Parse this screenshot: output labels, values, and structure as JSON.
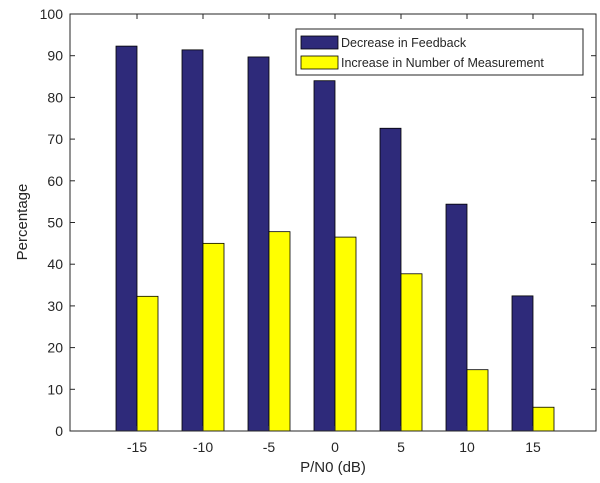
{
  "chart_data": {
    "type": "bar",
    "categories": [
      "-15",
      "-10",
      "-5",
      "0",
      "5",
      "10",
      "15"
    ],
    "series": [
      {
        "name": "Decrease in Feedback",
        "color": "#2e2a7a",
        "values": [
          92.3,
          91.4,
          89.7,
          84.0,
          72.6,
          54.4,
          32.4
        ]
      },
      {
        "name": "Increase in Number of Measurement",
        "color": "#ffff00",
        "values": [
          32.3,
          45.0,
          47.8,
          46.5,
          37.7,
          14.7,
          5.7
        ]
      }
    ],
    "xlabel": "P/N0 (dB)",
    "ylabel": "Percentage",
    "ylim": [
      0,
      100
    ],
    "yticks": [
      "0",
      "10",
      "20",
      "30",
      "40",
      "50",
      "60",
      "70",
      "80",
      "90",
      "100"
    ],
    "grid": false,
    "legend": "top-right"
  }
}
